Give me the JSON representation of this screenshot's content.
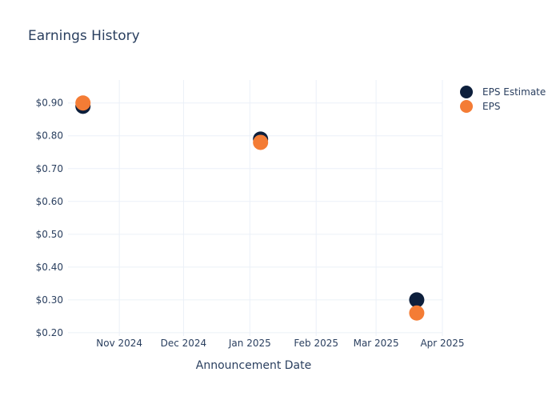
{
  "chart_data": {
    "type": "scatter",
    "title": "Earnings History",
    "xlabel": "Announcement Date",
    "ylabel": "",
    "x_ticks": [
      "2024-11-01",
      "2024-12-01",
      "2025-01-01",
      "2025-02-01",
      "2025-03-01",
      "2025-04-01"
    ],
    "x_tick_labels": [
      "Nov 2024",
      "Dec 2024",
      "Jan 2025",
      "Feb 2025",
      "Mar 2025",
      "Apr 2025"
    ],
    "xlim": [
      "2024-10-08",
      "2025-04-01"
    ],
    "y_ticks": [
      0.2,
      0.3,
      0.4,
      0.5,
      0.6,
      0.7,
      0.8,
      0.9
    ],
    "y_tick_labels": [
      "$0.20",
      "$0.30",
      "$0.40",
      "$0.50",
      "$0.60",
      "$0.70",
      "$0.80",
      "$0.90"
    ],
    "ylim": [
      0.19,
      0.97
    ],
    "grid": true,
    "legend_position": "top-right",
    "series": [
      {
        "name": "EPS Estimate",
        "color": "#0d1f3c",
        "points": [
          {
            "x": "2024-10-15",
            "y": 0.89
          },
          {
            "x": "2025-01-06",
            "y": 0.79
          },
          {
            "x": "2025-03-20",
            "y": 0.3
          }
        ]
      },
      {
        "name": "EPS",
        "color": "#f47c35",
        "points": [
          {
            "x": "2024-10-15",
            "y": 0.9
          },
          {
            "x": "2025-01-06",
            "y": 0.78
          },
          {
            "x": "2025-03-20",
            "y": 0.26
          }
        ]
      }
    ]
  }
}
